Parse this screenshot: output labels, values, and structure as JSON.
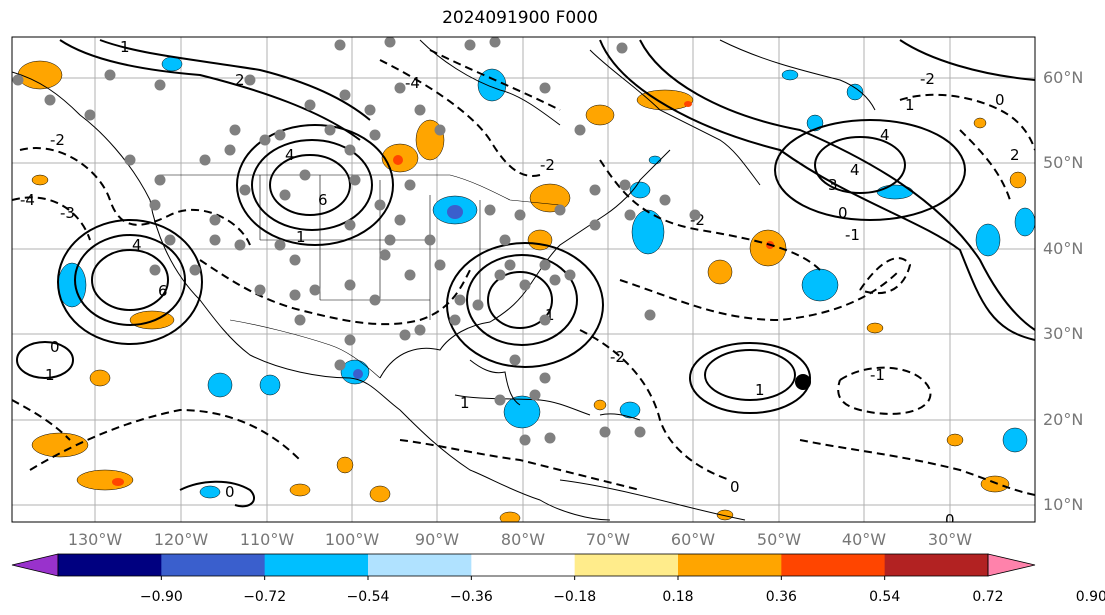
{
  "title": "2024091900 F000",
  "lat_labels": [
    "60°N",
    "50°N",
    "40°N",
    "30°N",
    "20°N",
    "10°N"
  ],
  "lon_labels": [
    "130°W",
    "120°W",
    "110°W",
    "100°W",
    "90°W",
    "80°W",
    "70°W",
    "60°W",
    "50°W",
    "40°W",
    "30°W"
  ],
  "colorbar": {
    "ticks": [
      "−0.90",
      "−0.72",
      "−0.54",
      "−0.36",
      "−0.18",
      "0.18",
      "0.36",
      "0.54",
      "0.72",
      "0.90"
    ],
    "colors": [
      "#9932cc",
      "#000080",
      "#3a5fcd",
      "#00bfff",
      "#b0e2ff",
      "#ffffff",
      "#ffec8b",
      "#ffa500",
      "#ff4500",
      "#b22222",
      "#ff82ab"
    ]
  },
  "colors": {
    "positive_fill": "#ffa500",
    "negative_fill": "#00bfff",
    "contour": "#000000",
    "marker": "#808080"
  },
  "contour_labels": [
    "0",
    "1",
    "2",
    "3",
    "4",
    "6",
    "-1",
    "-2",
    "-3",
    "-4"
  ]
}
